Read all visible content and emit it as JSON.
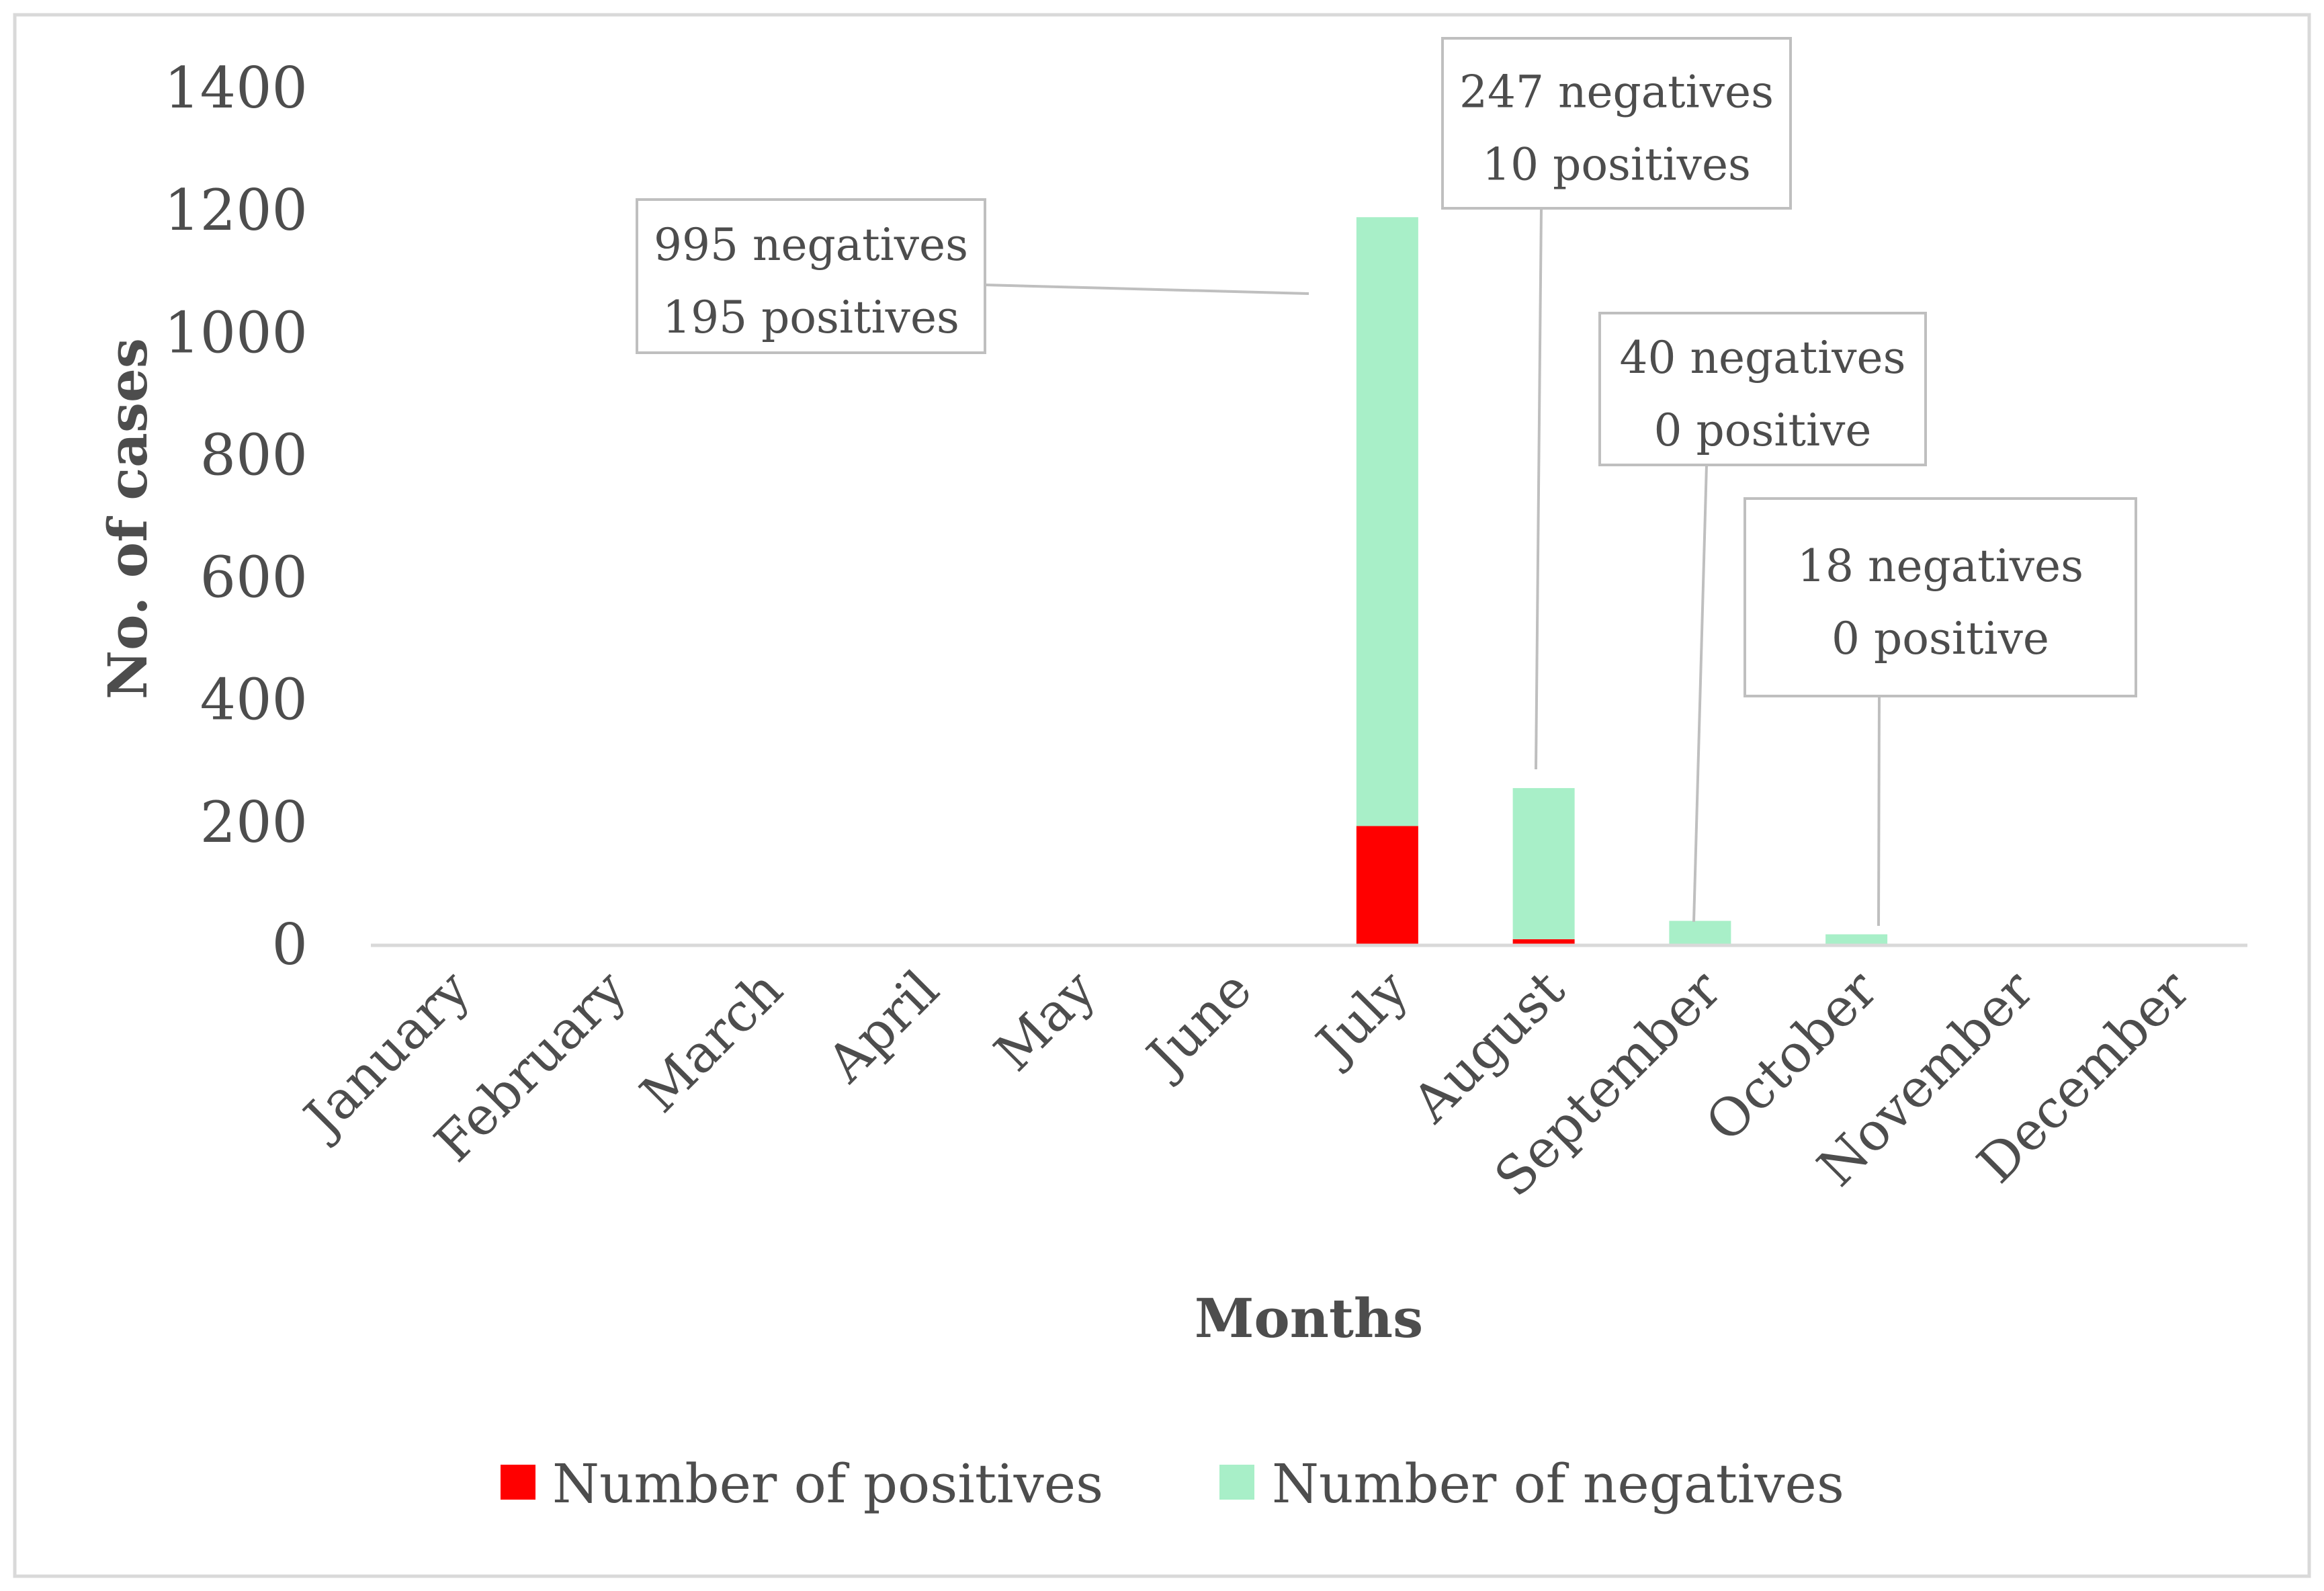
{
  "chart_data": {
    "type": "bar",
    "stacked": true,
    "categories": [
      "January",
      "February",
      "March",
      "April",
      "May",
      "June",
      "July",
      "August",
      "September",
      "October",
      "November",
      "December"
    ],
    "series": [
      {
        "name": "Number of positives",
        "color": "#ff0000",
        "values": [
          0,
          0,
          0,
          0,
          0,
          0,
          195,
          10,
          0,
          0,
          0,
          0
        ]
      },
      {
        "name": "Number of negatives",
        "color": "#a8efc8",
        "values": [
          0,
          0,
          0,
          0,
          0,
          0,
          995,
          247,
          40,
          18,
          0,
          0
        ]
      }
    ],
    "xlabel": "Months",
    "ylabel": "No. of cases",
    "ylim": [
      0,
      1400
    ],
    "yticks": [
      "0",
      "200",
      "400",
      "600",
      "800",
      "1000",
      "1200",
      "1400"
    ],
    "grid": false,
    "legend_position": "bottom",
    "annotations": [
      {
        "month": "July",
        "line1": "995 negatives",
        "line2": "195 positives"
      },
      {
        "month": "August",
        "line1": "247 negatives",
        "line2": "10 positives"
      },
      {
        "month": "September",
        "line1": "40 negatives",
        "line2": "0 positive"
      },
      {
        "month": "October",
        "line1": "18 negatives",
        "line2": "0 positive"
      }
    ]
  }
}
